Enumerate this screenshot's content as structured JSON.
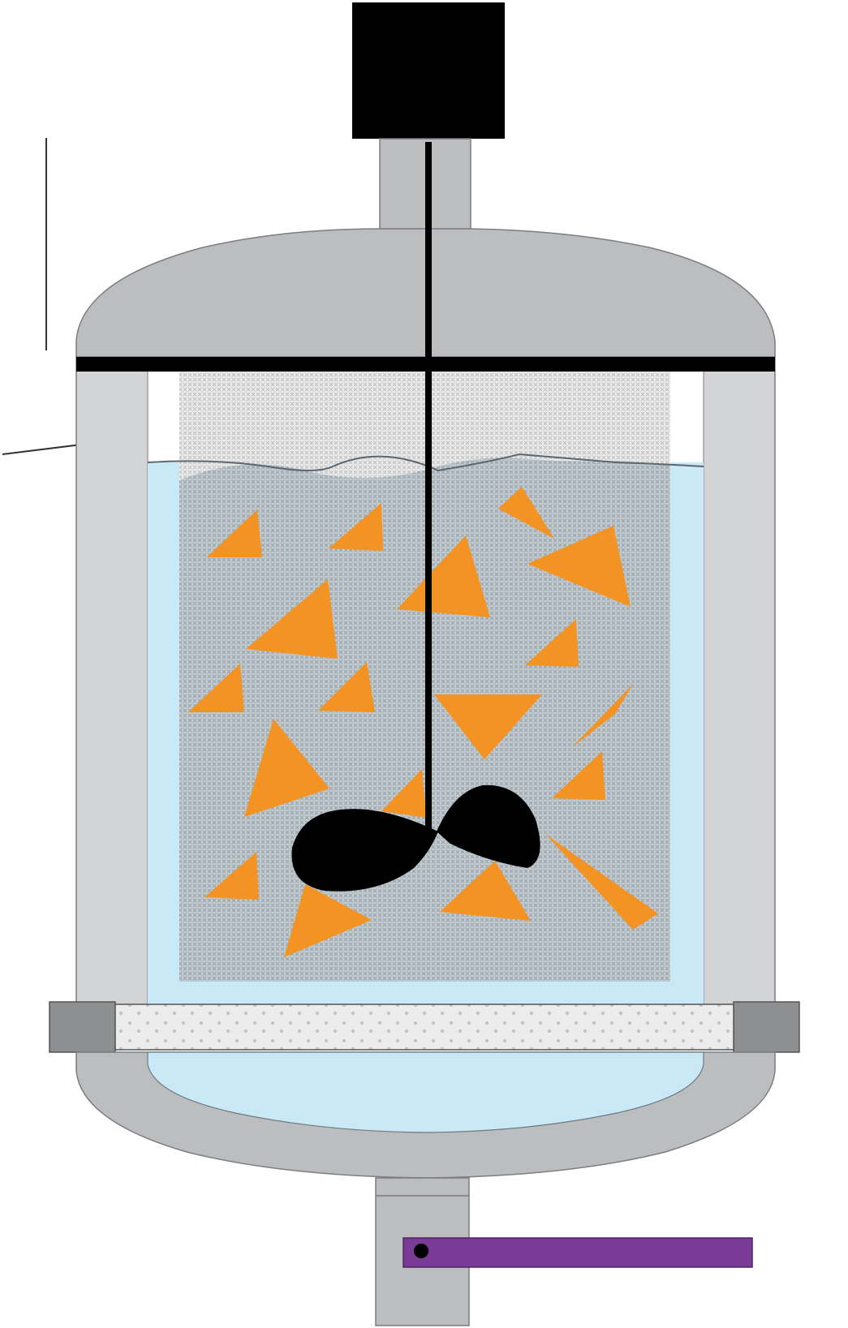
{
  "diagram": {
    "kind": "agitated filter vessel schematic",
    "labels": [],
    "components": [
      "motor",
      "agitator-shaft",
      "impeller",
      "vessel-dome",
      "vessel-wall",
      "top-plate",
      "filter-bag",
      "liquid",
      "solid-particles",
      "filter-plate",
      "bottom-dish",
      "outlet-pipe",
      "valve-handle",
      "leader-lines"
    ],
    "particle_count": 20
  },
  "colors": {
    "background": "#ffffff",
    "vessel_grey": "#b8b8ba",
    "vessel_light": "#d3d4d6",
    "flange_grey": "#8e8f91",
    "liquid_blue": "#c9e9f7",
    "mesh_grey": "#aab3b8",
    "foam_grey": "#e2e2e2",
    "particle_orange": "#f39323",
    "impeller_black": "#000000",
    "valve_purple": "#7a3b96",
    "filter_plate": "#e8e8e8"
  }
}
